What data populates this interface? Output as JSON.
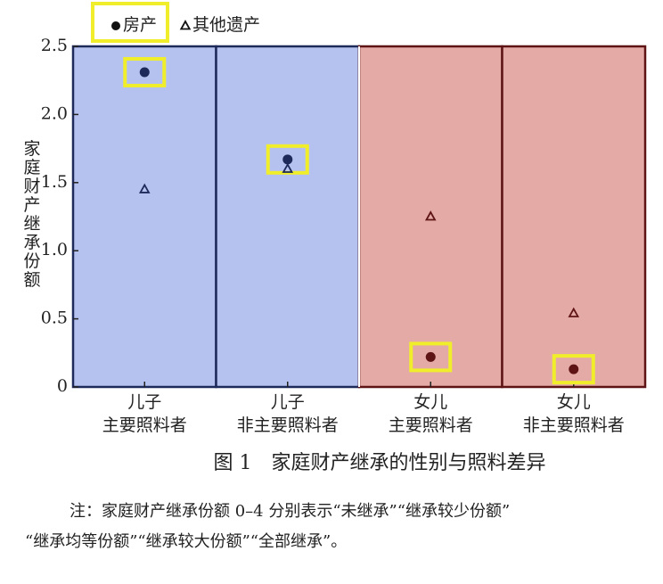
{
  "chart_data": {
    "type": "dot",
    "title": "图 1　家庭财产继承的性别与照料差异",
    "y_label": "家庭财产继承份额",
    "categories": [
      [
        "儿子",
        "主要照料者"
      ],
      [
        "儿子",
        "非主要照料者"
      ],
      [
        "女儿",
        "主要照料者"
      ],
      [
        "女儿",
        "非主要照料者"
      ]
    ],
    "series": [
      {
        "name": "房产",
        "marker": "circle",
        "values": [
          2.31,
          1.67,
          0.22,
          0.13
        ]
      },
      {
        "name": "其他遗产",
        "marker": "triangle",
        "values": [
          1.45,
          1.6,
          1.25,
          0.54
        ]
      }
    ],
    "point_colors": [
      "#1e2a5a",
      "#1e2a5a",
      "#5e1414",
      "#5e1414"
    ],
    "panel_colors": [
      "#b5c2ef",
      "#b5c2ef",
      "#e4aaa5",
      "#e4aaa5"
    ],
    "ylim": [
      0,
      2.5
    ],
    "yticks": [
      0,
      0.5,
      {
        "value": 1.0,
        "label": "1.0"
      },
      1.5,
      {
        "value": 2.0,
        "label": "2.0"
      },
      2.5
    ],
    "note": [
      "注：家庭财产继承份额 0–4 分别表示“未继承”“继承较少份额”",
      "“继承均等份额”“继承较大份额”“全部继承”。"
    ]
  }
}
